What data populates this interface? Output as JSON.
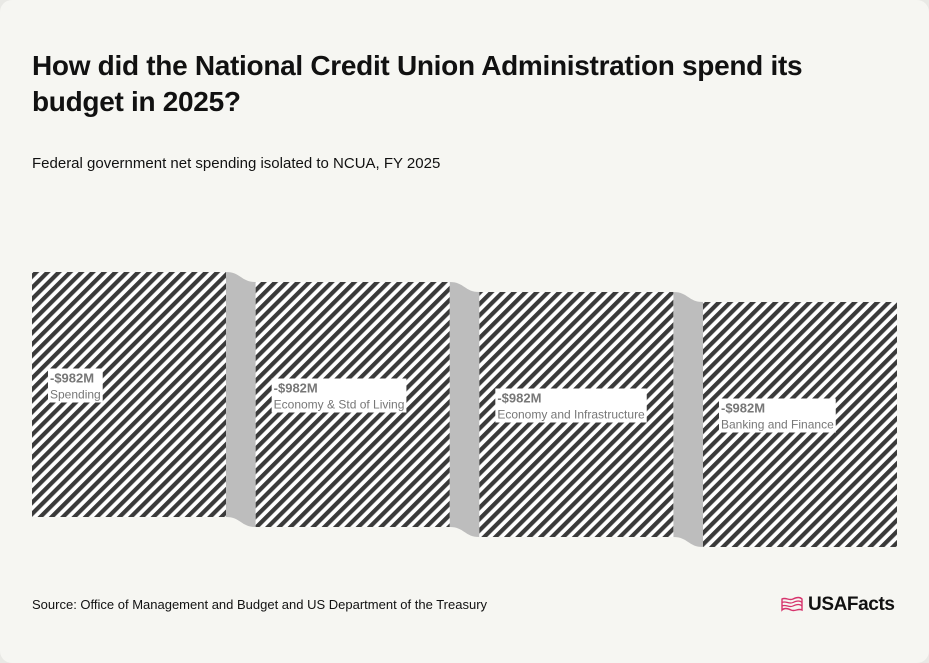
{
  "header": {
    "title": "How did the National Credit Union Administration spend its budget in 2025?",
    "subtitle": "Federal government net spending isolated to NCUA, FY 2025"
  },
  "footer": {
    "source": "Source: Office of Management and Budget and US Department of the Treasury",
    "logo_text": "USAFacts",
    "logo_icon": "us-flag-icon"
  },
  "colors": {
    "hatch_stroke": "#3a3a3a",
    "hatch_background": "#ffffff",
    "connector": "#bdbdbd",
    "logo_accent": "#d6336c"
  },
  "chart_data": {
    "type": "sankey",
    "title": "How did the National Credit Union Administration spend its budget in 2025?",
    "subtitle": "Federal government net spending isolated to NCUA, FY 2025",
    "unit": "USD",
    "nodes": [
      {
        "level": 0,
        "name": "Spending",
        "value": -982,
        "value_label": "-$982M"
      },
      {
        "level": 1,
        "name": "Economy & Std of Living",
        "value": -982,
        "value_label": "-$982M"
      },
      {
        "level": 2,
        "name": "Economy and Infrastructure",
        "value": -982,
        "value_label": "-$982M"
      },
      {
        "level": 3,
        "name": "Banking and Finance",
        "value": -982,
        "value_label": "-$982M"
      }
    ],
    "links": [
      {
        "source": "Spending",
        "target": "Economy & Std of Living",
        "value": -982
      },
      {
        "source": "Economy & Std of Living",
        "target": "Economy and Infrastructure",
        "value": -982
      },
      {
        "source": "Economy and Infrastructure",
        "target": "Banking and Finance",
        "value": -982
      }
    ]
  }
}
